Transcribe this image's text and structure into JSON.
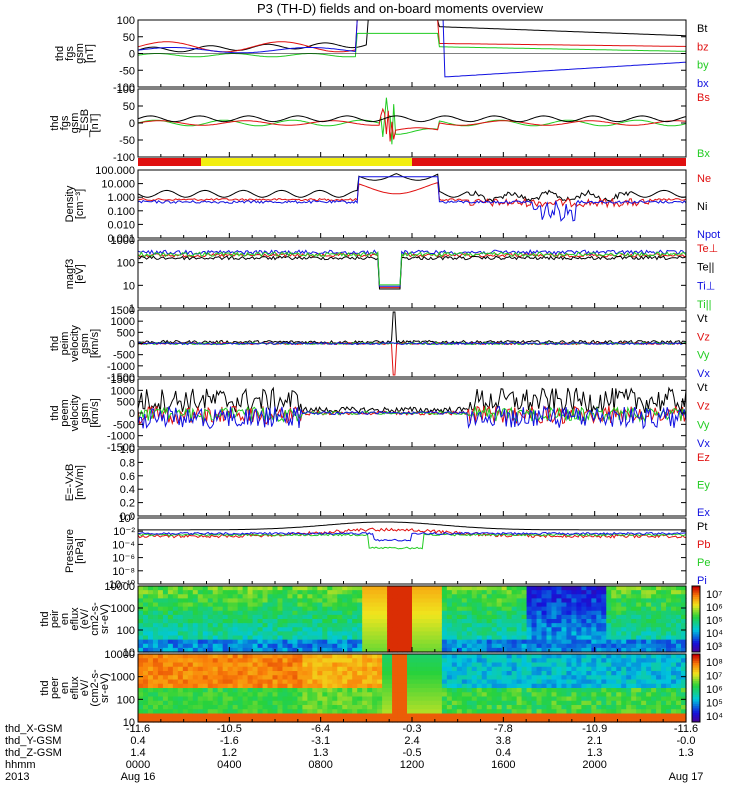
{
  "title": "P3 (TH-D) fields and on-board moments overview",
  "colors": {
    "black": "#000000",
    "red": "#e01010",
    "green": "#22cc22",
    "blue": "#1010e0",
    "yellow": "#f2ee10"
  },
  "chart_data": [
    {
      "type": "line",
      "ylabel_lines": [
        "thd",
        "fgs",
        "gsm",
        "[nT]"
      ],
      "ylim": [
        -100,
        100
      ],
      "ticks": [
        "100",
        "50",
        "0",
        "-50",
        "-100"
      ],
      "legend": [
        {
          "name": "Bt",
          "color": "black"
        },
        {
          "name": "bz",
          "color": "red"
        },
        {
          "name": "by",
          "color": "green"
        },
        {
          "name": "bx",
          "color": "blue"
        }
      ]
    },
    {
      "type": "line",
      "ylabel_lines": [
        "thd",
        "fgs",
        "gsm",
        "_ESB",
        "[nT]"
      ],
      "ylim": [
        -120,
        120
      ],
      "ticks": [
        "100",
        "50",
        "0",
        "-50",
        "-100"
      ],
      "legend": [
        {
          "name": "Bs",
          "color": "red"
        },
        {
          "name": "Bx",
          "color": "green"
        }
      ]
    },
    {
      "type": "bar",
      "name": "mode-bar",
      "segments": [
        {
          "color": "red",
          "from": 0,
          "to": 0.115
        },
        {
          "color": "yellow",
          "from": 0.115,
          "to": 0.5
        },
        {
          "color": "red",
          "from": 0.5,
          "to": 1
        }
      ]
    },
    {
      "type": "line",
      "ylabel_lines": [
        "Density",
        "[cm⁻³]"
      ],
      "scale": "log",
      "ticks": [
        "100.000",
        "10.000",
        "1.000",
        "0.100",
        "0.010",
        "0.001"
      ],
      "legend": [
        {
          "name": "Ne",
          "color": "red"
        },
        {
          "name": "Ni",
          "color": "black"
        },
        {
          "name": "Npot",
          "color": "blue"
        }
      ]
    },
    {
      "type": "line",
      "ylabel_lines": [
        "magf3",
        "[eV]"
      ],
      "scale": "log",
      "ticks": [
        "1000",
        "100",
        "10",
        "1"
      ],
      "legend": [
        {
          "name": "Te⊥",
          "color": "red"
        },
        {
          "name": "Te||",
          "color": "black"
        },
        {
          "name": "Ti⊥",
          "color": "blue"
        },
        {
          "name": "Ti||",
          "color": "green"
        }
      ]
    },
    {
      "type": "line",
      "ylabel_lines": [
        "thd",
        "peim",
        "velocity",
        "gsm",
        "[km/s]"
      ],
      "ylim": [
        -1500,
        1500
      ],
      "ticks": [
        "1500",
        "1000",
        "500",
        "0",
        "-500",
        "-1000",
        "-1500"
      ],
      "legend": [
        {
          "name": "Vt",
          "color": "black"
        },
        {
          "name": "Vz",
          "color": "red"
        },
        {
          "name": "Vy",
          "color": "green"
        },
        {
          "name": "Vx",
          "color": "blue"
        }
      ]
    },
    {
      "type": "line",
      "ylabel_lines": [
        "thd",
        "peem",
        "velocity",
        "gsm",
        "[km/s]"
      ],
      "ylim": [
        -1500,
        1500
      ],
      "ticks": [
        "1500",
        "1000",
        "500",
        "0",
        "-500",
        "-1000",
        "-1500"
      ],
      "legend": [
        {
          "name": "Vt",
          "color": "black"
        },
        {
          "name": "Vz",
          "color": "red"
        },
        {
          "name": "Vy",
          "color": "green"
        },
        {
          "name": "Vx",
          "color": "blue"
        }
      ]
    },
    {
      "type": "line",
      "ylabel_lines": [
        "E=-VxB",
        "[mV/m]"
      ],
      "ylim": [
        0,
        1
      ],
      "ticks": [
        "1.0",
        "0.8",
        "0.6",
        "0.4",
        "0.2",
        "0.0"
      ],
      "legend": [
        {
          "name": "Ez",
          "color": "red"
        },
        {
          "name": "Ey",
          "color": "green"
        },
        {
          "name": "Ex",
          "color": "blue"
        }
      ]
    },
    {
      "type": "line",
      "ylabel_lines": [
        "Pressure",
        "[nPa]"
      ],
      "scale": "log",
      "ticks": [
        "10⁰",
        "10⁻²",
        "10⁻⁴",
        "10⁻⁶",
        "10⁻⁸",
        "10⁻¹⁰"
      ],
      "legend": [
        {
          "name": "Pt",
          "color": "black"
        },
        {
          "name": "Pb",
          "color": "red"
        },
        {
          "name": "Pe",
          "color": "green"
        },
        {
          "name": "Pi",
          "color": "blue"
        }
      ]
    },
    {
      "type": "heatmap",
      "ylabel_lines": [
        "thd",
        "peir",
        "en",
        "eflux",
        "(eV/",
        "cm2-s-",
        "sr-eV)"
      ],
      "scale": "log",
      "ticks": [
        "10000",
        "1000",
        "100",
        "10"
      ],
      "colorbar": [
        "10⁷",
        "10⁶",
        "10⁵",
        "10⁴",
        "10³"
      ]
    },
    {
      "type": "heatmap",
      "ylabel_lines": [
        "thd",
        "peer",
        "en",
        "eflux",
        "eV/",
        "(cm2-s-",
        "sr-eV)"
      ],
      "scale": "log",
      "ticks": [
        "10000",
        "1000",
        "100",
        "10"
      ],
      "colorbar": [
        "10⁸",
        "10⁷",
        "10⁶",
        "10⁵",
        "10⁴"
      ]
    }
  ],
  "x_axis": {
    "row_labels": [
      "thd_X-GSM",
      "thd_Y-GSM",
      "thd_Z-GSM",
      "hhmm",
      "2013"
    ],
    "columns": [
      {
        "x": "-11.6",
        "y": "0.4",
        "z": "1.4",
        "hhmm": "0000",
        "date": "Aug 16"
      },
      {
        "x": "-10.5",
        "y": "-1.6",
        "z": "1.2",
        "hhmm": "0400",
        "date": ""
      },
      {
        "x": "-6.4",
        "y": "-3.1",
        "z": "1.3",
        "hhmm": "0800",
        "date": ""
      },
      {
        "x": "-0.3",
        "y": "2.4",
        "z": "-0.5",
        "hhmm": "1200",
        "date": ""
      },
      {
        "x": "-7.8",
        "y": "3.8",
        "z": "0.4",
        "hhmm": "1600",
        "date": ""
      },
      {
        "x": "-10.9",
        "y": "2.1",
        "z": "1.3",
        "hhmm": "2000",
        "date": ""
      },
      {
        "x": "-11.6",
        "y": "-0.0",
        "z": "1.3",
        "hhmm": "",
        "date": "Aug 17"
      }
    ]
  }
}
